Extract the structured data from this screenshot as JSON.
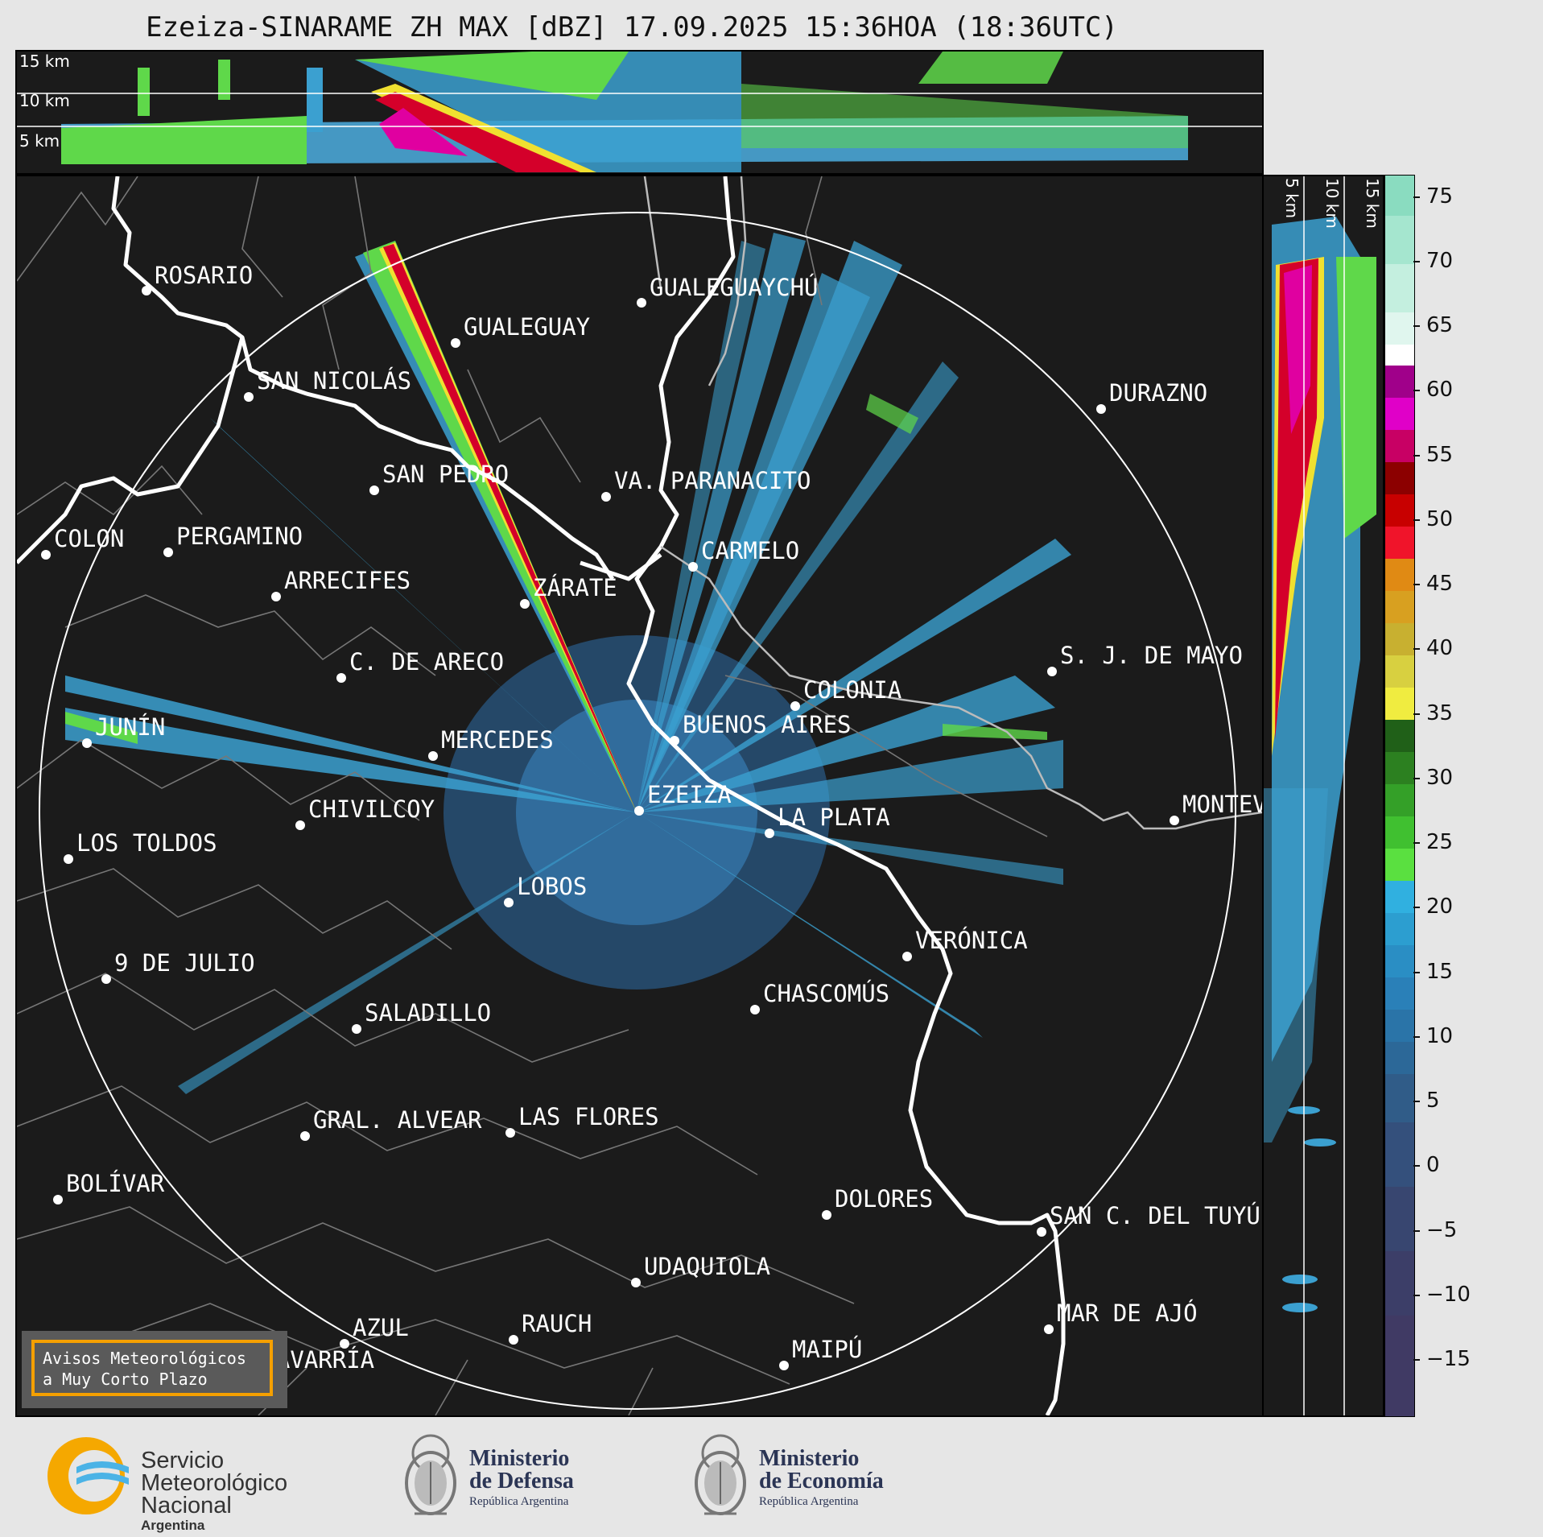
{
  "title": "Ezeiza-SINARAME ZH MAX [dBZ] 17.09.2025 15:36HOA (18:36UTC)",
  "top_panel": {
    "height_labels": [
      "15 km",
      "10 km",
      "5 km"
    ]
  },
  "side_panel": {
    "height_labels": [
      "5 km",
      "10 km",
      "15 km"
    ]
  },
  "colorbar": {
    "unit": "dBZ",
    "ticks": [
      "75",
      "70",
      "65",
      "60",
      "55",
      "50",
      "45",
      "40",
      "35",
      "30",
      "25",
      "20",
      "15",
      "10",
      "5",
      "0",
      "−5",
      "−10",
      "−15"
    ],
    "range": [
      -20,
      77
    ]
  },
  "cities": [
    {
      "name": "ROSARIO"
    },
    {
      "name": "GUALEGUAYCHÚ"
    },
    {
      "name": "GUALEGUAY"
    },
    {
      "name": "SAN NICOLÁS"
    },
    {
      "name": "DURAZNO"
    },
    {
      "name": "SAN PEDRO"
    },
    {
      "name": "VA. PARANACITO"
    },
    {
      "name": "COLON"
    },
    {
      "name": "PERGAMINO"
    },
    {
      "name": "CARMELO"
    },
    {
      "name": "ARRECIFES"
    },
    {
      "name": "ZÁRATE"
    },
    {
      "name": "S. J. DE MAYO"
    },
    {
      "name": "C. DE ARECO"
    },
    {
      "name": "COLONIA"
    },
    {
      "name": "JUNÍN"
    },
    {
      "name": "BUENOS AIRES"
    },
    {
      "name": "MERCEDES"
    },
    {
      "name": "EZEIZA"
    },
    {
      "name": "MONTEV"
    },
    {
      "name": "CHIVILCOY"
    },
    {
      "name": "LA PLATA"
    },
    {
      "name": "LOS TOLDOS"
    },
    {
      "name": "LOBOS"
    },
    {
      "name": "VERÓNICA"
    },
    {
      "name": "9 DE JULIO"
    },
    {
      "name": "CHASCOMÚS"
    },
    {
      "name": "SALADILLO"
    },
    {
      "name": "GRAL. ALVEAR"
    },
    {
      "name": "LAS FLORES"
    },
    {
      "name": "BOLÍVAR"
    },
    {
      "name": "DOLORES"
    },
    {
      "name": "SAN C. DEL TUYÚ"
    },
    {
      "name": "UDAQUIOLA"
    },
    {
      "name": "MAR DE AJÓ"
    },
    {
      "name": "AZUL"
    },
    {
      "name": "RAUCH"
    },
    {
      "name": "OLAVARRÍA"
    },
    {
      "name": "MAIPÚ"
    }
  ],
  "warning": {
    "line1": "Avisos Meteorológicos",
    "line2": "a Muy Corto Plazo",
    "border_color": "#f5a000"
  },
  "footer": {
    "smn": {
      "line1": "Servicio",
      "line2": "Meteorológico",
      "line3": "Nacional",
      "line4": "Argentina"
    },
    "defensa": {
      "line1": "Ministerio",
      "line2": "de Defensa",
      "line3": "República Argentina"
    },
    "economia": {
      "line1": "Ministerio",
      "line2": "de Economía",
      "line3": "República Argentina"
    }
  }
}
